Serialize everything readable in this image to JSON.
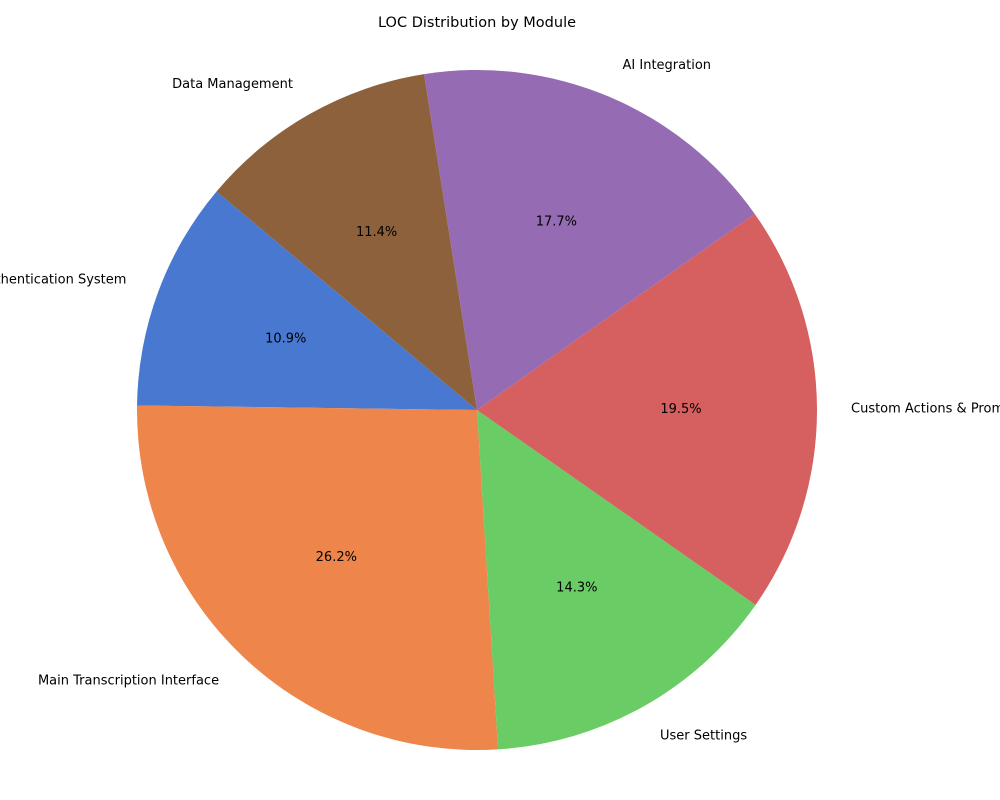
{
  "chart_data": {
    "type": "pie",
    "title": "LOC Distribution by Module",
    "categories": [
      "Authentication System",
      "Main Transcription Interface",
      "User Settings",
      "Custom Actions & Prompts",
      "AI Integration",
      "Data Management"
    ],
    "values": [
      10.9,
      26.2,
      14.3,
      19.5,
      17.7,
      11.4
    ],
    "value_labels": [
      "10.9%",
      "26.2%",
      "14.3%",
      "19.5%",
      "17.7%",
      "11.4%"
    ],
    "colors": [
      "#4878d0",
      "#ee854a",
      "#6acc64",
      "#d65f5f",
      "#956cb4",
      "#8c613c"
    ],
    "start_angle_deg": 140,
    "direction": "counterclockwise"
  }
}
